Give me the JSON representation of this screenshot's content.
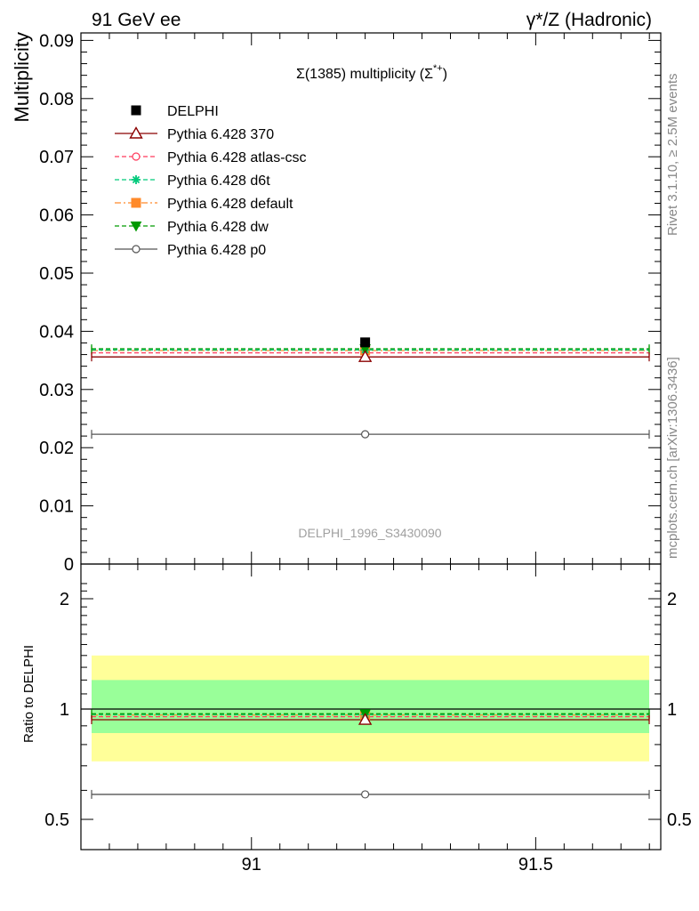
{
  "header": {
    "left": "91 GeV ee",
    "right": "γ*/Z (Hadronic)"
  },
  "side_text": {
    "rivet": "Rivet 3.1.10, ≥ 2.5M events",
    "mcplots": "mcplots.cern.ch [arXiv:1306.3436]"
  },
  "colors": {
    "data": "#000000",
    "p370": "#8b0000",
    "atlas_csc": "#ff3b5c",
    "d6t": "#00c97a",
    "default": "#ff8a2a",
    "dw": "#009a00",
    "p0": "#555555",
    "band_yellow": "#ffff99",
    "band_green": "#99ff99"
  },
  "chart_data": [
    {
      "type": "scatter",
      "title": "Σ(1385) multiplicity (Σ*+)",
      "title_base": "Σ(1385) multiplicity (Σ",
      "title_sup": "*+",
      "title_close": ")",
      "ylabel": "Multiplicity",
      "watermark": "DELPHI_1996_S3430090",
      "xlim": [
        90.7,
        91.72
      ],
      "ylim": [
        0,
        0.092
      ],
      "yticks": [
        0,
        0.01,
        0.02,
        0.03,
        0.04,
        0.05,
        0.06,
        0.07,
        0.08,
        0.09
      ],
      "ytick_labels": [
        "0",
        "0.01",
        "0.02",
        "0.03",
        "0.04",
        "0.05",
        "0.06",
        "0.07",
        "0.08",
        "0.09"
      ],
      "legend_position": "top-left",
      "series": [
        {
          "name": "DELPHI",
          "key": "delphi",
          "marker": "square",
          "line": "none",
          "x": [
            91.2
          ],
          "y": [
            0.0381
          ],
          "xerr": [
            0,
            0
          ]
        },
        {
          "name": "Pythia 6.428 370",
          "key": "p370",
          "marker": "triangle-open",
          "line": "solid",
          "x": [
            91.2
          ],
          "y": [
            0.0356
          ],
          "xrange": [
            90.7,
            91.72
          ]
        },
        {
          "name": "Pythia 6.428 atlas-csc",
          "key": "atlas_csc",
          "marker": "circle-open",
          "line": "dashed",
          "x": [
            91.2
          ],
          "y": [
            0.0363
          ],
          "xrange": [
            90.7,
            91.72
          ]
        },
        {
          "name": "Pythia 6.428 d6t",
          "key": "d6t",
          "marker": "star",
          "line": "dashed",
          "x": [
            91.2
          ],
          "y": [
            0.0368
          ],
          "xrange": [
            90.7,
            91.72
          ]
        },
        {
          "name": "Pythia 6.428 default",
          "key": "default",
          "marker": "square",
          "line": "dashdot",
          "x": [
            91.2
          ],
          "y": [
            0.0367
          ],
          "xrange": [
            90.7,
            91.72
          ]
        },
        {
          "name": "Pythia 6.428 dw",
          "key": "dw",
          "marker": "triangle-down",
          "line": "dashed",
          "x": [
            91.2
          ],
          "y": [
            0.037
          ],
          "xrange": [
            90.7,
            91.72
          ]
        },
        {
          "name": "Pythia 6.428 p0",
          "key": "p0",
          "marker": "circle-open",
          "line": "solid",
          "x": [
            91.2
          ],
          "y": [
            0.0223
          ],
          "xrange": [
            90.7,
            91.72
          ]
        }
      ]
    },
    {
      "type": "scatter",
      "ylabel": "Ratio to DELPHI",
      "xlim": [
        90.7,
        91.72
      ],
      "ylim": [
        0.42,
        2.25
      ],
      "yscale": "log",
      "yticks": [
        0.5,
        1,
        2
      ],
      "ytick_labels": [
        "0.5",
        "1",
        "2"
      ],
      "xticks": [
        91,
        91.5
      ],
      "xtick_labels": [
        "91",
        "91.5"
      ],
      "bands": [
        {
          "kind": "2sigma",
          "y_low": 0.72,
          "y_high": 1.4
        },
        {
          "kind": "1sigma",
          "y_low": 0.86,
          "y_high": 1.2
        }
      ],
      "series": [
        {
          "name": "DELPHI",
          "key": "delphi",
          "y": 1.0
        },
        {
          "name": "Pythia 6.428 370",
          "key": "p370",
          "y": 0.935
        },
        {
          "name": "Pythia 6.428 atlas-csc",
          "key": "atlas_csc",
          "y": 0.953
        },
        {
          "name": "Pythia 6.428 d6t",
          "key": "d6t",
          "y": 0.966
        },
        {
          "name": "Pythia 6.428 default",
          "key": "default",
          "y": 0.963
        },
        {
          "name": "Pythia 6.428 dw",
          "key": "dw",
          "y": 0.971
        },
        {
          "name": "Pythia 6.428 p0",
          "key": "p0",
          "y": 0.585
        }
      ]
    }
  ]
}
